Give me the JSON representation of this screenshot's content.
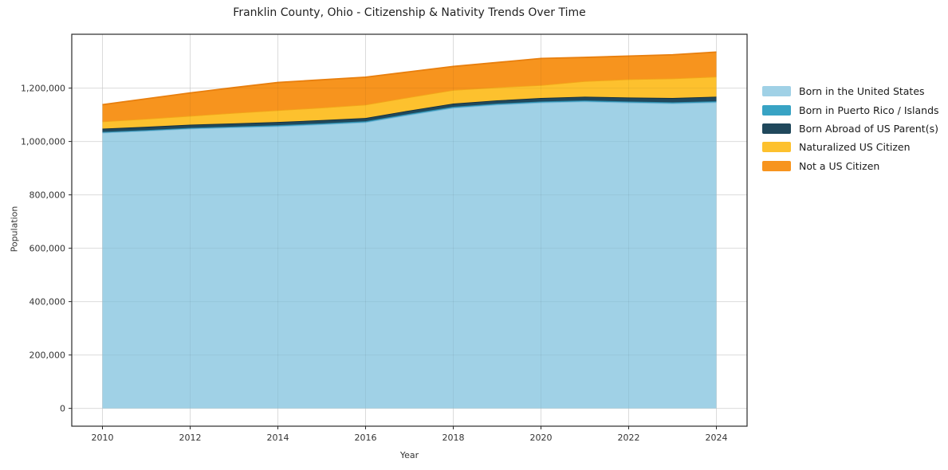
{
  "figure": {
    "title": "Franklin County, Ohio - Citizenship & Nativity Trends Over Time",
    "xlabel": "Year",
    "ylabel": "Population"
  },
  "chart_data": {
    "type": "area",
    "stacked": true,
    "title": "Franklin County, Ohio - Citizenship & Nativity Trends Over Time",
    "xlabel": "Year",
    "ylabel": "Population",
    "grid": true,
    "legend_position": "right",
    "x": [
      2010,
      2011,
      2012,
      2013,
      2014,
      2015,
      2016,
      2017,
      2018,
      2019,
      2020,
      2021,
      2022,
      2023,
      2024
    ],
    "series": [
      {
        "name": "Born in the United States",
        "color": "#a0d1e6",
        "edge_color": "#7cb9d9",
        "values": [
          1033000,
          1040000,
          1048000,
          1053000,
          1057000,
          1064000,
          1072000,
          1100000,
          1126000,
          1138000,
          1146000,
          1150000,
          1146000,
          1143000,
          1147000
        ]
      },
      {
        "name": "Born in Puerto Rico / Islands",
        "color": "#38a3c4",
        "edge_color": "#2b87a6",
        "values": [
          3000,
          3000,
          3000,
          3000,
          4000,
          4000,
          4000,
          4000,
          4000,
          4000,
          4000,
          4000,
          4000,
          4000,
          4000
        ]
      },
      {
        "name": "Born Abroad of US Parent(s)",
        "color": "#20485c",
        "edge_color": "#142f3d",
        "values": [
          12000,
          12000,
          12000,
          12000,
          12000,
          12000,
          12000,
          12000,
          12000,
          12000,
          13000,
          14000,
          15000,
          16000,
          17000
        ]
      },
      {
        "name": "Naturalized US Citizen",
        "color": "#fdc12e",
        "edge_color": "#f2a619",
        "values": [
          27000,
          30000,
          33000,
          39000,
          44000,
          47000,
          50000,
          50000,
          51000,
          49000,
          48000,
          58000,
          68000,
          73000,
          75000
        ]
      },
      {
        "name": "Not a US Citizen",
        "color": "#f7941e",
        "edge_color": "#e87f0e",
        "values": [
          63000,
          75000,
          86000,
          95000,
          104000,
          104000,
          103000,
          95000,
          88000,
          93000,
          100000,
          89000,
          87000,
          89000,
          92000
        ]
      }
    ],
    "xticks": [
      2010,
      2012,
      2014,
      2016,
      2018,
      2020,
      2022,
      2024
    ],
    "yticks": [
      0,
      200000,
      400000,
      600000,
      800000,
      1000000,
      1200000
    ],
    "xlim": [
      2009.3,
      2024.7
    ],
    "ylim": [
      -66750,
      1401750
    ],
    "colors": {
      "background": "#ffffff",
      "gridline": "#e7e7e7",
      "spine": "#2a2a2a",
      "tick_label": "#333333",
      "title_text": "#222222"
    }
  }
}
